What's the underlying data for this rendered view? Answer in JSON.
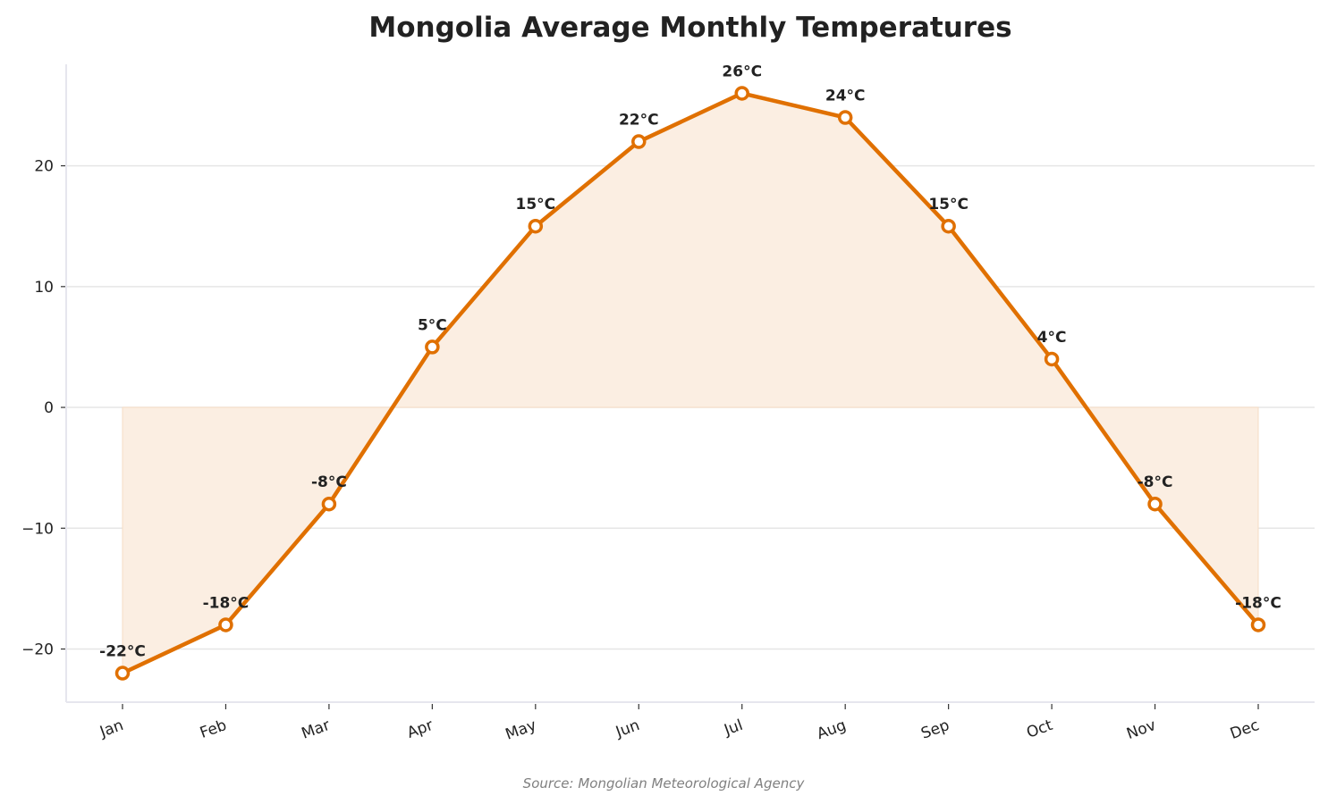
{
  "chart_data": {
    "type": "line",
    "title": "Mongolia Average Monthly Temperatures",
    "categories": [
      "Jan",
      "Feb",
      "Mar",
      "Apr",
      "May",
      "Jun",
      "Jul",
      "Aug",
      "Sep",
      "Oct",
      "Nov",
      "Dec"
    ],
    "values": [
      -22,
      -18,
      -8,
      5,
      15,
      22,
      26,
      24,
      15,
      4,
      -8,
      -18
    ],
    "data_labels": [
      "-22°C",
      "-18°C",
      "-8°C",
      "5°C",
      "15°C",
      "22°C",
      "26°C",
      "24°C",
      "15°C",
      "4°C",
      "-8°C",
      "-18°C"
    ],
    "xlabel": "",
    "ylabel": "",
    "ylim": [
      -24.4,
      28.4
    ],
    "yticks": [
      -20,
      -10,
      0,
      10,
      20
    ],
    "ytick_labels": [
      "−20",
      "−10",
      "0",
      "10",
      "20"
    ],
    "grid": "horizontal",
    "fill_to_zero": true,
    "line_color": "#e07000",
    "fill_color": "#fbeee2",
    "source_note": "Source: Mongolian Meteorological Agency"
  }
}
